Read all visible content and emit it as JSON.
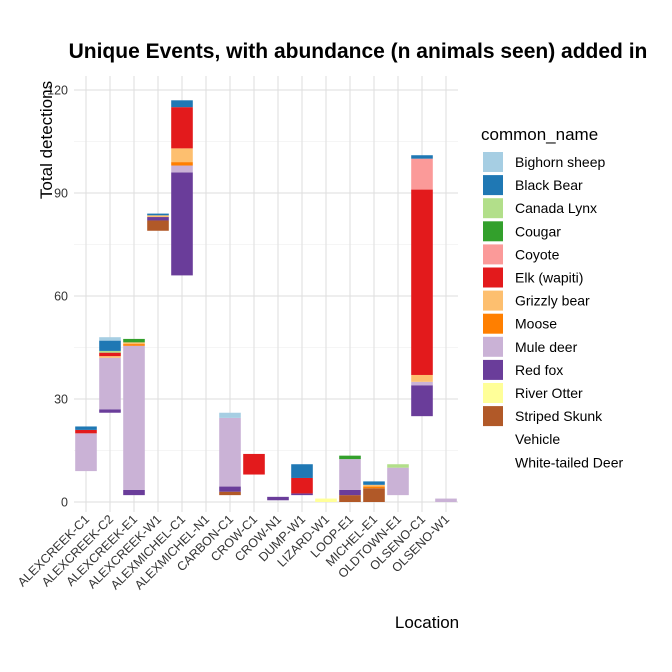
{
  "chart_data": {
    "type": "bar",
    "stacked": true,
    "title": "Unique Events, with abundance (n animals seen) added in",
    "xlabel": "Location",
    "ylabel": "Total detections",
    "ylim": [
      0,
      123
    ],
    "yticks": [
      0,
      30,
      60,
      90,
      120
    ],
    "grid": true,
    "legend_title": "common_name",
    "legend_position": "right",
    "categories": [
      "ALEXCREEK-C1",
      "ALEXCREEK-C2",
      "ALEXCREEK-E1",
      "ALEXCREEK-W1",
      "ALEXMICHEL-C1",
      "ALEXMICHEL-N1",
      "CARBON-C1",
      "CROW-C1",
      "CROW-N1",
      "DUMP-W1",
      "LIZARD-W1",
      "LOOP-E1",
      "MICHEL-E1",
      "OLDTOWN-E1",
      "OLSENO-C1",
      "OLSENO-W1"
    ],
    "series": [
      {
        "name": "Bighorn sheep",
        "color": "#a6cee3",
        "values": [
          0,
          1,
          0,
          0,
          0,
          0,
          1.5,
          0,
          0,
          0,
          0,
          0,
          0,
          0,
          0,
          0
        ]
      },
      {
        "name": "Black Bear",
        "color": "#1f78b4",
        "values": [
          1,
          3,
          0,
          0.5,
          2,
          0,
          0,
          0,
          0,
          4,
          0,
          0,
          1,
          0,
          1,
          0
        ]
      },
      {
        "name": "Canada Lynx",
        "color": "#b2df8a",
        "values": [
          0,
          0.5,
          0,
          0,
          0,
          0,
          0,
          0,
          0,
          0,
          0,
          0,
          0,
          1,
          0,
          0
        ]
      },
      {
        "name": "Cougar",
        "color": "#33a02c",
        "values": [
          0,
          0,
          1,
          0,
          0,
          0,
          0,
          0,
          0,
          0,
          0,
          1,
          0,
          0,
          0,
          0
        ]
      },
      {
        "name": "Coyote",
        "color": "#fb9a99",
        "values": [
          0,
          0,
          0,
          0,
          0,
          0,
          0,
          0,
          0,
          0,
          0,
          0,
          0,
          0,
          9,
          0
        ]
      },
      {
        "name": "Elk (wapiti)",
        "color": "#e31a1c",
        "values": [
          1,
          1,
          0,
          0,
          12,
          0,
          0,
          6,
          0,
          4.5,
          0,
          0,
          0,
          0,
          54,
          0
        ]
      },
      {
        "name": "Grizzly bear",
        "color": "#fdbf6f",
        "values": [
          0,
          0.5,
          0.5,
          0.5,
          4,
          0,
          0,
          0,
          0,
          0,
          0,
          0,
          0.5,
          0,
          2,
          0
        ]
      },
      {
        "name": "Moose",
        "color": "#ff7f00",
        "values": [
          0,
          0,
          0.5,
          0,
          1,
          0,
          0,
          0,
          0,
          0,
          0,
          0,
          0.5,
          0,
          0,
          0
        ]
      },
      {
        "name": "Mule deer",
        "color": "#cab2d6",
        "values": [
          11,
          15,
          42,
          0,
          2,
          0,
          20,
          0,
          0,
          0,
          0,
          9,
          0,
          8,
          1,
          1
        ]
      },
      {
        "name": "Red fox",
        "color": "#6a3d9a",
        "values": [
          0,
          1,
          1.5,
          1,
          30,
          0,
          1.5,
          0,
          1,
          0.5,
          0,
          1.5,
          0,
          0,
          9,
          0
        ]
      },
      {
        "name": "River Otter",
        "color": "#ffff99",
        "values": [
          0,
          0,
          0,
          0,
          0,
          0,
          0,
          0,
          0,
          0,
          1,
          0,
          0,
          0,
          0,
          0
        ]
      },
      {
        "name": "Striped Skunk",
        "color": "#b15928",
        "values": [
          0,
          0,
          0,
          3,
          0,
          0,
          1,
          0,
          0,
          0,
          0,
          2,
          4,
          0,
          0,
          0
        ]
      },
      {
        "name": "Vehicle",
        "color": "#ffffff",
        "values": [
          0,
          0,
          0,
          0,
          0,
          0,
          0,
          0,
          0,
          0,
          0,
          0,
          0,
          0,
          0,
          0
        ]
      },
      {
        "name": "White-tailed Deer",
        "color": "#ffffff",
        "values": [
          0,
          0,
          0,
          0,
          0,
          0,
          0,
          0,
          0,
          0,
          0,
          0,
          0,
          0,
          0,
          0
        ]
      }
    ],
    "bar_base": [
      9,
      26,
      2,
      79,
      66,
      0,
      2,
      8,
      0.5,
      2,
      0,
      0,
      0,
      2,
      25,
      0
    ]
  }
}
